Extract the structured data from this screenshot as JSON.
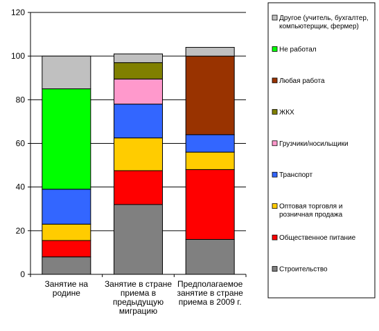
{
  "chart_data": {
    "type": "bar",
    "stacked": true,
    "categories": [
      [
        "Занятие  на",
        "родине"
      ],
      [
        "Занятие в стране",
        "приема в",
        "предыдущую",
        "миграцию"
      ],
      [
        "Предполагаемое",
        "занятие в стране",
        "приема в 2009 г."
      ]
    ],
    "ylim": [
      0,
      120
    ],
    "yticks": [
      0,
      20,
      40,
      60,
      80,
      100,
      120
    ],
    "legend_position": "right",
    "series": [
      {
        "name": "Строительство",
        "color": "#808080",
        "values": [
          8,
          32,
          16
        ]
      },
      {
        "name": "Общественное питание",
        "color": "#ff0000",
        "values": [
          7.5,
          15.5,
          32
        ]
      },
      {
        "name": "Оптовая торговля и розничная продажа",
        "color": "#ffcc00",
        "values": [
          7.5,
          15,
          8
        ]
      },
      {
        "name": "Транспорт",
        "color": "#3366ff",
        "values": [
          16,
          15.5,
          8
        ]
      },
      {
        "name": "Грузчики/носильщики",
        "color": "#ff99cc",
        "values": [
          0,
          11.5,
          0
        ]
      },
      {
        "name": "ЖКХ",
        "color": "#808000",
        "values": [
          0,
          7.5,
          0
        ]
      },
      {
        "name": "Любая работа",
        "color": "#993300",
        "values": [
          0,
          0,
          36
        ]
      },
      {
        "name": "Не работал",
        "color": "#00ff00",
        "values": [
          46,
          0,
          0
        ]
      },
      {
        "name": "Другое (учитель, бухгалтер, компьютерщик, фермер)",
        "color": "#c0c0c0",
        "values": [
          15,
          4,
          4
        ]
      }
    ]
  },
  "legend": {
    "items": [
      {
        "lines": [
          "Другое (учитель, бухгалтер,",
          "компьютерщик, фермер)"
        ],
        "color": "#c0c0c0"
      },
      {
        "lines": [
          "Не работал"
        ],
        "color": "#00ff00"
      },
      {
        "lines": [
          "Любая работа"
        ],
        "color": "#993300"
      },
      {
        "lines": [
          "ЖКХ"
        ],
        "color": "#808000"
      },
      {
        "lines": [
          "Грузчики/носильщики"
        ],
        "color": "#ff99cc"
      },
      {
        "lines": [
          "Транспорт"
        ],
        "color": "#3366ff"
      },
      {
        "lines": [
          "Оптовая торговля и",
          "розничная продажа"
        ],
        "color": "#ffcc00"
      },
      {
        "lines": [
          "Общественное питание"
        ],
        "color": "#ff0000"
      },
      {
        "lines": [
          "Строительство"
        ],
        "color": "#808080"
      }
    ]
  }
}
